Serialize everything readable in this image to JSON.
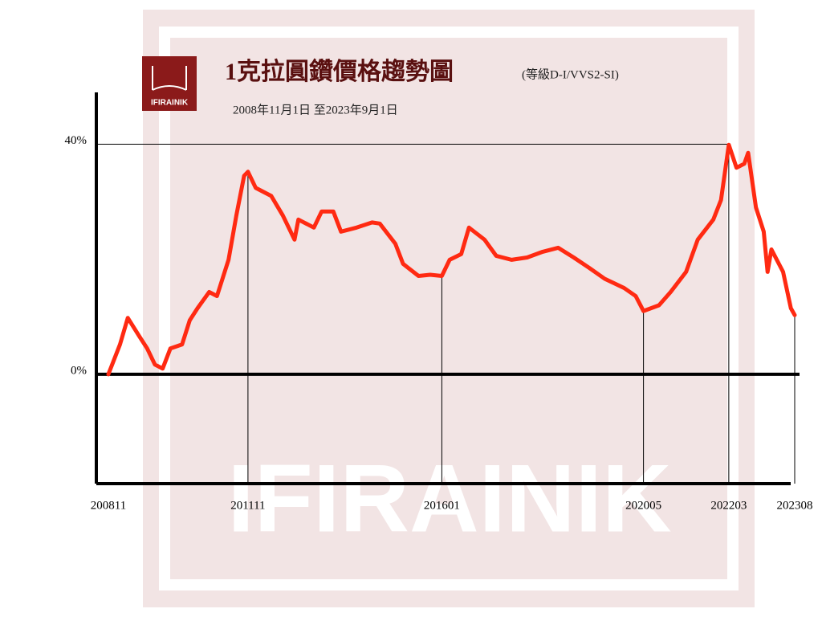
{
  "chart_data": {
    "type": "line",
    "title": "1克拉圓鑽價格趨勢圖",
    "subtitle": "(等級D-I/VVS2-SI)",
    "period": "2008年11月1日  至2023年9月1日",
    "logo": "IFIRAINIK",
    "watermark": "IFIRAINIK",
    "x": [
      "2008-11",
      "2009-02",
      "2009-04",
      "2009-07",
      "2009-09",
      "2009-11",
      "2010-01",
      "2010-03",
      "2010-06",
      "2010-08",
      "2010-10",
      "2011-01",
      "2011-03",
      "2011-06",
      "2011-08",
      "2011-10",
      "2011-11",
      "2012-01",
      "2012-05",
      "2012-08",
      "2012-11",
      "2012-12",
      "2013-04",
      "2013-06",
      "2013-09",
      "2013-11",
      "2014-03",
      "2014-07",
      "2014-09",
      "2015-01",
      "2015-03",
      "2015-07",
      "2015-10",
      "2016-01",
      "2016-03",
      "2016-06",
      "2016-08",
      "2016-12",
      "2017-03",
      "2017-07",
      "2017-11",
      "2018-03",
      "2018-07",
      "2018-11",
      "2019-03",
      "2019-07",
      "2019-12",
      "2020-03",
      "2020-05",
      "2020-09",
      "2020-12",
      "2021-04",
      "2021-07",
      "2021-11",
      "2022-01",
      "2022-03",
      "2022-05",
      "2022-07",
      "2022-08",
      "2022-10",
      "2022-12",
      "2023-01",
      "2023-02",
      "2023-05",
      "2023-07",
      "2023-08"
    ],
    "series": [
      {
        "color": "#ff2a12",
        "values": [
          0,
          5.2,
          9.8,
          6.6,
          4.5,
          1.7,
          1.0,
          4.5,
          5.2,
          9.4,
          11.5,
          14.3,
          13.6,
          19.9,
          27.6,
          34.5,
          35.2,
          32.4,
          31,
          27.6,
          23.4,
          26.9,
          25.5,
          28.3,
          28.3,
          24.8,
          25.5,
          26.4,
          26.2,
          22.7,
          19.2,
          17.1,
          17.3,
          17.1,
          19.9,
          20.9,
          25.5,
          23.4,
          20.6,
          19.9,
          20.3,
          21.3,
          22,
          20.3,
          18.5,
          16.6,
          15,
          13.6,
          11,
          12,
          14.3,
          17.8,
          23.4,
          26.9,
          30.3,
          39.9,
          35.9,
          36.6,
          38.5,
          29,
          24.8,
          17.8,
          21.7,
          17.8,
          11.5,
          10.3
        ]
      }
    ],
    "xlim": [
      "2008-11",
      "2023-08"
    ],
    "xticks": [
      {
        "value": "2008-11",
        "label": "200811"
      },
      {
        "value": "2011-11",
        "label": "201111"
      },
      {
        "value": "2016-01",
        "label": "201601"
      },
      {
        "value": "2020-05",
        "label": "202005"
      },
      {
        "value": "2022-03",
        "label": "202203"
      },
      {
        "value": "2023-08",
        "label": "202308"
      }
    ],
    "ylim": [
      -19,
      49
    ],
    "yticks": [
      {
        "value": 0,
        "label": "0%"
      },
      {
        "value": 40,
        "label": "40%"
      }
    ]
  }
}
